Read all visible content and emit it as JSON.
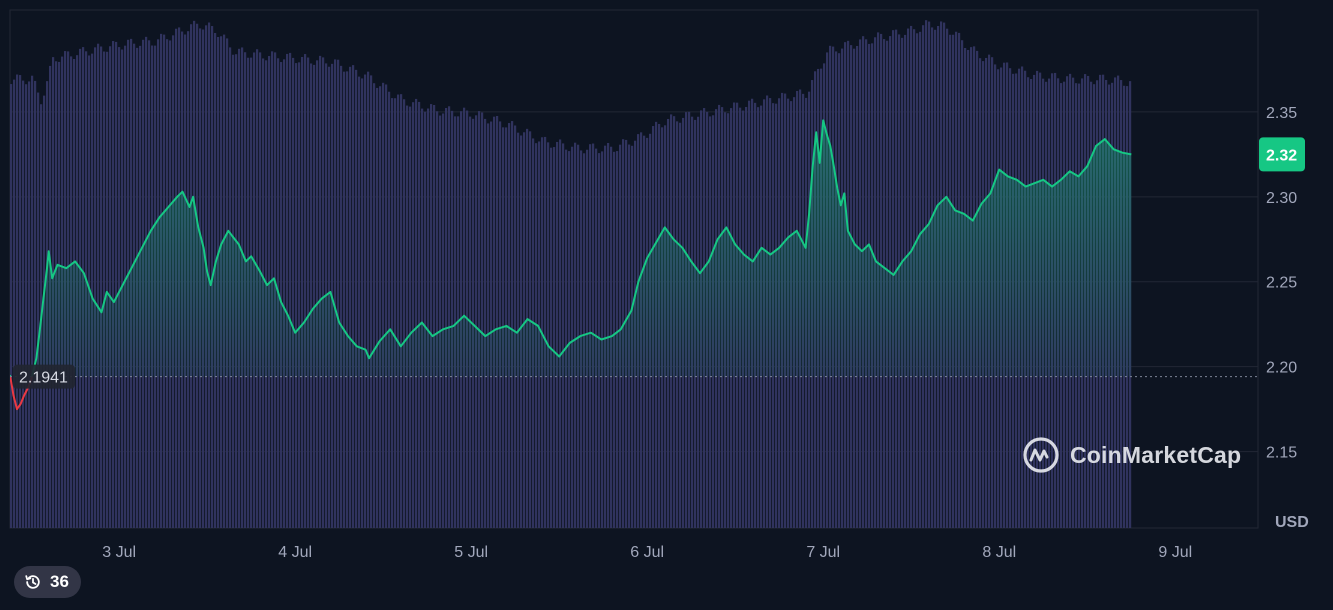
{
  "chart_data": {
    "type": "area",
    "currency_label": "USD",
    "colors": {
      "up": "#16c784",
      "down": "#ea3943",
      "volume": "#30335e",
      "background": "#0d1421",
      "grid": "#222735"
    },
    "ylim": [
      2.105,
      2.41
    ],
    "y_ticks": [
      2.15,
      2.2,
      2.25,
      2.3,
      2.35
    ],
    "y_tick_labels": [
      "2.15",
      "2.20",
      "2.25",
      "2.30",
      "2.35"
    ],
    "x_range": [
      2.38,
      9.47
    ],
    "x_ticks": [
      3,
      4,
      5,
      6,
      7,
      8,
      9
    ],
    "x_tick_labels": [
      "3 Jul",
      "4 Jul",
      "5 Jul",
      "6 Jul",
      "7 Jul",
      "8 Jul",
      "9 Jul"
    ],
    "reference_price": 2.1941,
    "reference_label": "2.1941",
    "current_price": 2.325,
    "current_label": "2.32",
    "price_series": [
      [
        2.38,
        2.195
      ],
      [
        2.4,
        2.183
      ],
      [
        2.42,
        2.175
      ],
      [
        2.44,
        2.178
      ],
      [
        2.46,
        2.183
      ],
      [
        2.48,
        2.187
      ],
      [
        2.5,
        2.192
      ],
      [
        2.53,
        2.205
      ],
      [
        2.55,
        2.222
      ],
      [
        2.57,
        2.24
      ],
      [
        2.59,
        2.258
      ],
      [
        2.6,
        2.268
      ],
      [
        2.62,
        2.252
      ],
      [
        2.65,
        2.26
      ],
      [
        2.7,
        2.258
      ],
      [
        2.75,
        2.262
      ],
      [
        2.8,
        2.255
      ],
      [
        2.85,
        2.24
      ],
      [
        2.9,
        2.232
      ],
      [
        2.93,
        2.244
      ],
      [
        2.97,
        2.238
      ],
      [
        3.02,
        2.248
      ],
      [
        3.08,
        2.26
      ],
      [
        3.13,
        2.27
      ],
      [
        3.18,
        2.28
      ],
      [
        3.23,
        2.288
      ],
      [
        3.28,
        2.294
      ],
      [
        3.33,
        2.3
      ],
      [
        3.36,
        2.303
      ],
      [
        3.4,
        2.294
      ],
      [
        3.42,
        2.3
      ],
      [
        3.45,
        2.282
      ],
      [
        3.48,
        2.27
      ],
      [
        3.5,
        2.256
      ],
      [
        3.52,
        2.248
      ],
      [
        3.55,
        2.262
      ],
      [
        3.58,
        2.272
      ],
      [
        3.62,
        2.28
      ],
      [
        3.65,
        2.276
      ],
      [
        3.68,
        2.272
      ],
      [
        3.72,
        2.262
      ],
      [
        3.75,
        2.265
      ],
      [
        3.8,
        2.256
      ],
      [
        3.84,
        2.248
      ],
      [
        3.88,
        2.252
      ],
      [
        3.92,
        2.238
      ],
      [
        3.96,
        2.23
      ],
      [
        4.0,
        2.22
      ],
      [
        4.05,
        2.226
      ],
      [
        4.1,
        2.234
      ],
      [
        4.15,
        2.24
      ],
      [
        4.2,
        2.244
      ],
      [
        4.25,
        2.226
      ],
      [
        4.3,
        2.218
      ],
      [
        4.35,
        2.212
      ],
      [
        4.4,
        2.21
      ],
      [
        4.42,
        2.205
      ],
      [
        4.48,
        2.215
      ],
      [
        4.54,
        2.222
      ],
      [
        4.6,
        2.212
      ],
      [
        4.66,
        2.22
      ],
      [
        4.72,
        2.226
      ],
      [
        4.78,
        2.218
      ],
      [
        4.84,
        2.222
      ],
      [
        4.9,
        2.224
      ],
      [
        4.96,
        2.23
      ],
      [
        5.02,
        2.224
      ],
      [
        5.08,
        2.218
      ],
      [
        5.14,
        2.222
      ],
      [
        5.2,
        2.224
      ],
      [
        5.26,
        2.22
      ],
      [
        5.32,
        2.228
      ],
      [
        5.38,
        2.224
      ],
      [
        5.44,
        2.212
      ],
      [
        5.5,
        2.206
      ],
      [
        5.56,
        2.214
      ],
      [
        5.62,
        2.218
      ],
      [
        5.68,
        2.22
      ],
      [
        5.74,
        2.216
      ],
      [
        5.8,
        2.218
      ],
      [
        5.85,
        2.222
      ],
      [
        5.91,
        2.233
      ],
      [
        5.95,
        2.25
      ],
      [
        6.0,
        2.264
      ],
      [
        6.05,
        2.273
      ],
      [
        6.1,
        2.282
      ],
      [
        6.15,
        2.275
      ],
      [
        6.2,
        2.27
      ],
      [
        6.25,
        2.262
      ],
      [
        6.3,
        2.255
      ],
      [
        6.35,
        2.262
      ],
      [
        6.4,
        2.275
      ],
      [
        6.45,
        2.282
      ],
      [
        6.5,
        2.272
      ],
      [
        6.55,
        2.266
      ],
      [
        6.6,
        2.262
      ],
      [
        6.65,
        2.27
      ],
      [
        6.7,
        2.266
      ],
      [
        6.75,
        2.27
      ],
      [
        6.8,
        2.276
      ],
      [
        6.85,
        2.28
      ],
      [
        6.9,
        2.27
      ],
      [
        6.92,
        2.29
      ],
      [
        6.94,
        2.318
      ],
      [
        6.96,
        2.338
      ],
      [
        6.98,
        2.32
      ],
      [
        7.0,
        2.345
      ],
      [
        7.02,
        2.337
      ],
      [
        7.04,
        2.33
      ],
      [
        7.06,
        2.318
      ],
      [
        7.08,
        2.305
      ],
      [
        7.1,
        2.295
      ],
      [
        7.12,
        2.302
      ],
      [
        7.14,
        2.28
      ],
      [
        7.18,
        2.272
      ],
      [
        7.22,
        2.268
      ],
      [
        7.26,
        2.272
      ],
      [
        7.3,
        2.262
      ],
      [
        7.35,
        2.258
      ],
      [
        7.4,
        2.254
      ],
      [
        7.45,
        2.262
      ],
      [
        7.5,
        2.268
      ],
      [
        7.55,
        2.278
      ],
      [
        7.6,
        2.284
      ],
      [
        7.65,
        2.295
      ],
      [
        7.7,
        2.3
      ],
      [
        7.75,
        2.292
      ],
      [
        7.8,
        2.29
      ],
      [
        7.85,
        2.286
      ],
      [
        7.9,
        2.296
      ],
      [
        7.95,
        2.302
      ],
      [
        8.0,
        2.316
      ],
      [
        8.05,
        2.312
      ],
      [
        8.1,
        2.31
      ],
      [
        8.15,
        2.306
      ],
      [
        8.2,
        2.308
      ],
      [
        8.25,
        2.31
      ],
      [
        8.3,
        2.306
      ],
      [
        8.35,
        2.31
      ],
      [
        8.4,
        2.315
      ],
      [
        8.45,
        2.312
      ],
      [
        8.5,
        2.318
      ],
      [
        8.55,
        2.33
      ],
      [
        8.6,
        2.334
      ],
      [
        8.65,
        2.328
      ],
      [
        8.7,
        2.326
      ],
      [
        8.75,
        2.325
      ]
    ],
    "volume_series": [
      [
        2.38,
        0.13
      ],
      [
        2.5,
        0.13
      ],
      [
        2.55,
        0.124
      ],
      [
        2.58,
        0.128
      ],
      [
        2.62,
        0.136
      ],
      [
        2.8,
        0.138
      ],
      [
        3.0,
        0.14
      ],
      [
        3.2,
        0.141
      ],
      [
        3.35,
        0.144
      ],
      [
        3.45,
        0.146
      ],
      [
        3.55,
        0.144
      ],
      [
        3.65,
        0.138
      ],
      [
        3.8,
        0.137
      ],
      [
        4.0,
        0.136
      ],
      [
        4.2,
        0.135
      ],
      [
        4.4,
        0.131
      ],
      [
        4.6,
        0.124
      ],
      [
        4.8,
        0.121
      ],
      [
        5.0,
        0.12
      ],
      [
        5.2,
        0.117
      ],
      [
        5.4,
        0.112
      ],
      [
        5.6,
        0.11
      ],
      [
        5.8,
        0.11
      ],
      [
        5.95,
        0.113
      ],
      [
        6.1,
        0.118
      ],
      [
        6.3,
        0.12
      ],
      [
        6.5,
        0.122
      ],
      [
        6.7,
        0.124
      ],
      [
        6.9,
        0.126
      ],
      [
        6.96,
        0.132
      ],
      [
        7.02,
        0.138
      ],
      [
        7.15,
        0.14
      ],
      [
        7.3,
        0.142
      ],
      [
        7.5,
        0.144
      ],
      [
        7.6,
        0.146
      ],
      [
        7.7,
        0.145
      ],
      [
        7.85,
        0.138
      ],
      [
        8.0,
        0.134
      ],
      [
        8.2,
        0.131
      ],
      [
        8.4,
        0.13
      ],
      [
        8.6,
        0.13
      ],
      [
        8.75,
        0.129
      ]
    ],
    "volume_range": [
      0,
      0.15
    ]
  },
  "watermark": {
    "text": "CoinMarketCap",
    "icon": "coinmarketcap-logo-icon"
  },
  "history_badge": {
    "count": "36",
    "icon": "history-clock-icon"
  }
}
